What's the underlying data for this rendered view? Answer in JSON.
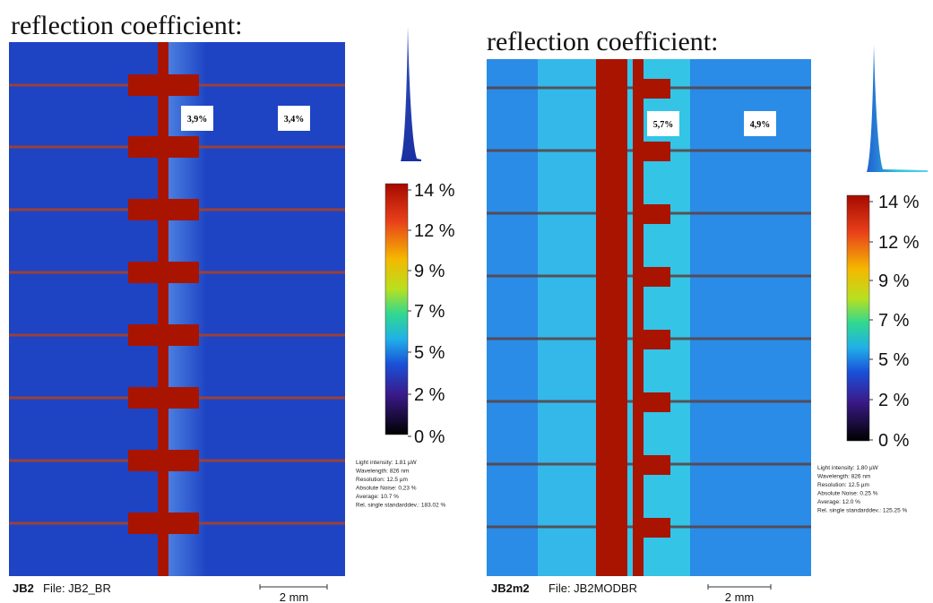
{
  "panels": [
    {
      "title": "reflection coefficient:",
      "labels": [
        "3,9%",
        "3,4%"
      ],
      "colorbar_ticks": [
        "14 %",
        "12 %",
        "9 %",
        "7 %",
        "5 %",
        "2 %",
        "0 %"
      ],
      "info": [
        "Light intensity: 1.81 µW",
        "Wavelength: 826 nm",
        "Resolution: 12.5 µm",
        "Absolute Noise: 0,23 %",
        "Average: 10.7 %",
        "Rel. single standarddev.: 183.02 %"
      ],
      "sample": "JB2",
      "file": "File: JB2_BR",
      "scale": "2 mm"
    },
    {
      "title": "reflection coefficient:",
      "labels": [
        "5,7%",
        "4,9%"
      ],
      "colorbar_ticks": [
        "14 %",
        "12 %",
        "9 %",
        "7 %",
        "5 %",
        "2 %",
        "0 %"
      ],
      "info": [
        "Light intensity: 1.80 µW",
        "Wavelength: 826 nm",
        "Resolution: 12.5 µm",
        "Absolute Noise: 0.25 %",
        "Average: 12.0 %",
        "Rel. single standarddev.: 125.25 %"
      ],
      "sample": "JB2m2",
      "file": "File: JB2MODBR",
      "scale": "2 mm"
    }
  ]
}
